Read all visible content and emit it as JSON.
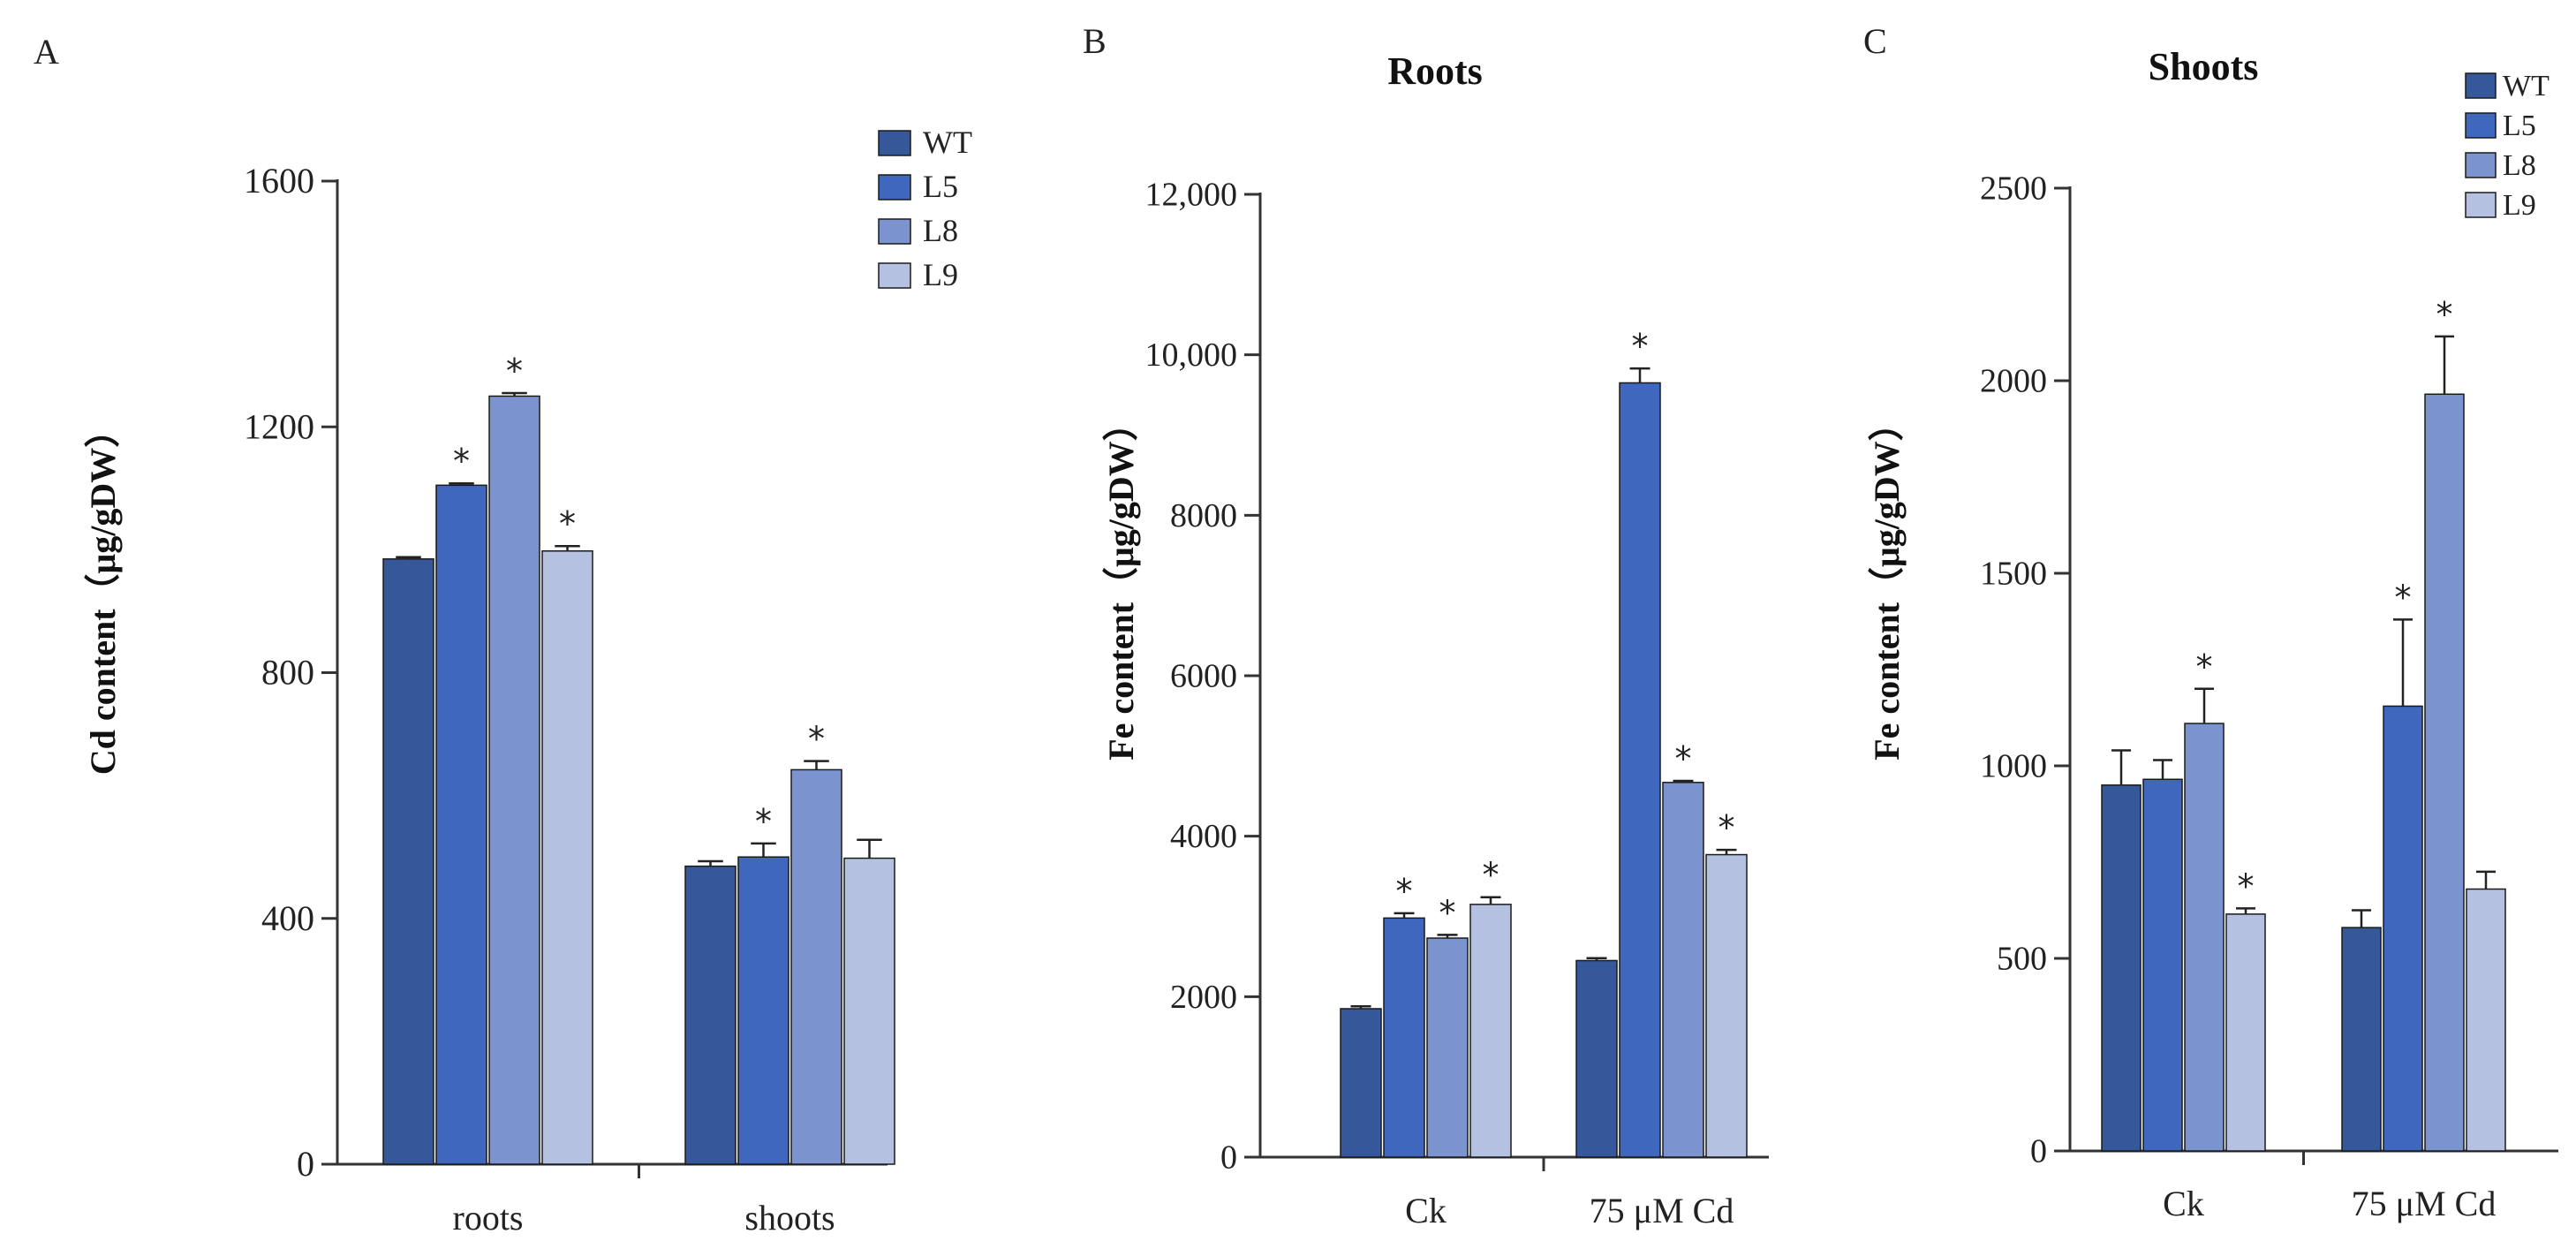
{
  "panels": [
    "A",
    "B",
    "C"
  ],
  "legend": [
    {
      "label": "WT",
      "color": "#34589a"
    },
    {
      "label": "L5",
      "color": "#3e67bd"
    },
    {
      "label": "L8",
      "color": "#7b94d0"
    },
    {
      "label": "L9",
      "color": "#b5c1e0"
    }
  ],
  "chart_data": [
    {
      "panel": "A",
      "type": "bar",
      "title": "",
      "xlabel": "",
      "ylabel": "Cd content（μg/gDW）",
      "categories": [
        "roots",
        "shoots"
      ],
      "ylim": [
        0,
        1600
      ],
      "yticks": [
        0,
        400,
        800,
        1200,
        1600
      ],
      "ytick_labels": [
        "0",
        "400",
        "800",
        "1200",
        "1600"
      ],
      "legend_position": "top-right",
      "series": [
        {
          "name": "WT",
          "values": [
            985,
            485
          ],
          "errors": [
            3,
            8
          ],
          "sig": [
            false,
            false
          ]
        },
        {
          "name": "L5",
          "values": [
            1105,
            500
          ],
          "errors": [
            3,
            22
          ],
          "sig": [
            true,
            true
          ]
        },
        {
          "name": "L8",
          "values": [
            1250,
            642
          ],
          "errors": [
            5,
            14
          ],
          "sig": [
            true,
            true
          ]
        },
        {
          "name": "L9",
          "values": [
            998,
            498
          ],
          "errors": [
            8,
            30
          ],
          "sig": [
            true,
            false
          ]
        }
      ]
    },
    {
      "panel": "B",
      "type": "bar",
      "title": "Roots",
      "xlabel": "",
      "ylabel": "Fe content（μg/gDW）",
      "categories": [
        "Ck",
        "75 μM Cd"
      ],
      "ylim": [
        0,
        12000
      ],
      "yticks": [
        0,
        2000,
        4000,
        6000,
        8000,
        10000,
        12000
      ],
      "ytick_labels": [
        "0",
        "2000",
        "4000",
        "6000",
        "8000",
        "10,000",
        "12,000"
      ],
      "legend_position": "none",
      "series": [
        {
          "name": "WT",
          "values": [
            1850,
            2450
          ],
          "errors": [
            30,
            30
          ],
          "sig": [
            false,
            false
          ]
        },
        {
          "name": "L5",
          "values": [
            2980,
            9650
          ],
          "errors": [
            60,
            180
          ],
          "sig": [
            true,
            true
          ]
        },
        {
          "name": "L8",
          "values": [
            2730,
            4670
          ],
          "errors": [
            40,
            20
          ],
          "sig": [
            true,
            true
          ]
        },
        {
          "name": "L9",
          "values": [
            3150,
            3770
          ],
          "errors": [
            90,
            60
          ],
          "sig": [
            true,
            true
          ]
        }
      ]
    },
    {
      "panel": "C",
      "type": "bar",
      "title": "Shoots",
      "xlabel": "",
      "ylabel": "Fe content（μg/gDW）",
      "categories": [
        "Ck",
        "75 μM Cd"
      ],
      "ylim": [
        0,
        2500
      ],
      "yticks": [
        0,
        500,
        1000,
        1500,
        2000,
        2500
      ],
      "ytick_labels": [
        "0",
        "500",
        "1000",
        "1500",
        "2000",
        "2500"
      ],
      "legend_position": "top-right",
      "series": [
        {
          "name": "WT",
          "values": [
            950,
            580
          ],
          "errors": [
            90,
            45
          ],
          "sig": [
            false,
            false
          ]
        },
        {
          "name": "L5",
          "values": [
            965,
            1155
          ],
          "errors": [
            50,
            225
          ],
          "sig": [
            false,
            true
          ]
        },
        {
          "name": "L8",
          "values": [
            1110,
            1965
          ],
          "errors": [
            90,
            150
          ],
          "sig": [
            true,
            true
          ]
        },
        {
          "name": "L9",
          "values": [
            615,
            680
          ],
          "errors": [
            15,
            45
          ],
          "sig": [
            true,
            false
          ]
        }
      ]
    }
  ]
}
